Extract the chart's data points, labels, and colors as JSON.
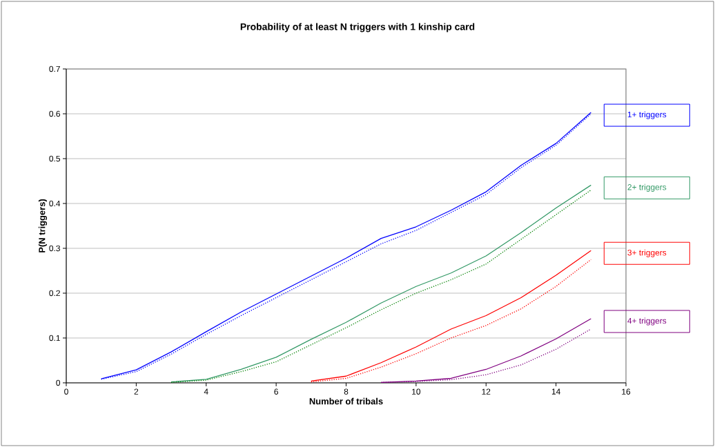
{
  "chart_data": {
    "type": "line",
    "title": "Probability of at least N triggers with 1 kinship card",
    "xlabel": "Number of tribals",
    "ylabel": "P(N triggers)",
    "xlim": [
      0,
      16
    ],
    "ylim": [
      0,
      0.7
    ],
    "xticks": [
      0,
      2,
      4,
      6,
      8,
      10,
      12,
      14,
      16
    ],
    "yticks": [
      0,
      0.1,
      0.2,
      0.3,
      0.4,
      0.5,
      0.6,
      0.7
    ],
    "grid": "y",
    "series": [
      {
        "name": "1+ triggers",
        "color": "#0000ff",
        "line_style": "solid",
        "x": [
          1,
          2,
          3,
          4,
          5,
          6,
          7,
          8,
          9,
          10,
          11,
          12,
          13,
          14,
          15
        ],
        "values": [
          0.009,
          0.029,
          0.069,
          0.114,
          0.158,
          0.198,
          0.238,
          0.278,
          0.322,
          0.348,
          0.385,
          0.426,
          0.485,
          0.534,
          0.603
        ]
      },
      {
        "color": "#0000ff",
        "line_style": "dotted",
        "x": [
          1,
          2,
          3,
          4,
          5,
          6,
          7,
          8,
          9,
          10,
          11,
          12,
          13,
          14,
          15
        ],
        "values": [
          0.008,
          0.025,
          0.064,
          0.108,
          0.15,
          0.19,
          0.23,
          0.27,
          0.31,
          0.34,
          0.38,
          0.42,
          0.48,
          0.53,
          0.6
        ]
      },
      {
        "name": "2+ triggers",
        "color": "#339966",
        "line_style": "solid",
        "x": [
          3,
          4,
          5,
          6,
          7,
          8,
          9,
          10,
          11,
          12,
          13,
          14,
          15
        ],
        "values": [
          0.002,
          0.008,
          0.03,
          0.057,
          0.097,
          0.135,
          0.178,
          0.215,
          0.245,
          0.283,
          0.335,
          0.39,
          0.441
        ]
      },
      {
        "color": "#008000",
        "line_style": "dotted",
        "x": [
          3,
          4,
          5,
          6,
          7,
          8,
          9,
          10,
          11,
          12,
          13,
          14,
          15
        ],
        "values": [
          0.001,
          0.006,
          0.025,
          0.047,
          0.085,
          0.123,
          0.163,
          0.2,
          0.23,
          0.265,
          0.32,
          0.375,
          0.43
        ]
      },
      {
        "name": "3+ triggers",
        "color": "#ff0000",
        "line_style": "solid",
        "x": [
          7,
          8,
          9,
          10,
          11,
          12,
          13,
          14,
          15
        ],
        "values": [
          0.004,
          0.015,
          0.045,
          0.08,
          0.12,
          0.15,
          0.19,
          0.24,
          0.295
        ]
      },
      {
        "color": "#ff0000",
        "line_style": "dotted",
        "x": [
          7,
          8,
          9,
          10,
          11,
          12,
          13,
          14,
          15
        ],
        "values": [
          0.002,
          0.01,
          0.035,
          0.065,
          0.1,
          0.128,
          0.165,
          0.215,
          0.275
        ]
      },
      {
        "name": "4+ triggers",
        "color": "#800080",
        "line_style": "solid",
        "x": [
          9,
          10,
          11,
          12,
          13,
          14,
          15
        ],
        "values": [
          0.001,
          0.004,
          0.01,
          0.03,
          0.06,
          0.098,
          0.143
        ]
      },
      {
        "color": "#800080",
        "line_style": "dotted",
        "x": [
          9,
          10,
          11,
          12,
          13,
          14,
          15
        ],
        "values": [
          0.001,
          0.003,
          0.007,
          0.018,
          0.04,
          0.075,
          0.12
        ]
      }
    ]
  }
}
